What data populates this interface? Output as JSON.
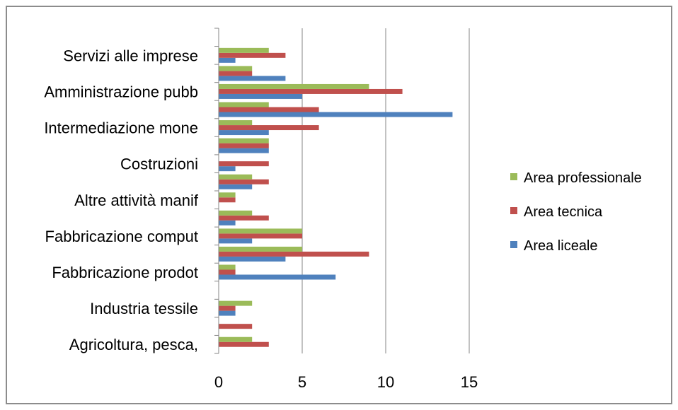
{
  "chart_data": {
    "type": "bar",
    "orientation": "horizontal",
    "title": "",
    "xlabel": "",
    "ylabel": "",
    "xlim": [
      0,
      15
    ],
    "xticks": [
      0,
      5,
      10,
      15
    ],
    "grid": "vertical",
    "legend_position": "right",
    "categories": [
      "Agricoltura, pesca,",
      "",
      "Industria tessile",
      "",
      "Fabbricazione prodot",
      "",
      "Fabbricazione comput",
      "",
      "Altre attività manif",
      "",
      "Costruzioni",
      "",
      "Intermediazione mone",
      "",
      "Amministrazione pubb",
      "",
      "Servizi alle imprese",
      ""
    ],
    "series": [
      {
        "name": "Area liceale",
        "color": "#4f81bd",
        "values": [
          0,
          0,
          1,
          0,
          7,
          4,
          2,
          1,
          0,
          2,
          1,
          3,
          3,
          14,
          5,
          4,
          1,
          0
        ]
      },
      {
        "name": "Area tecnica",
        "color": "#c0504d",
        "values": [
          3,
          2,
          1,
          0,
          1,
          9,
          5,
          3,
          1,
          3,
          3,
          3,
          6,
          6,
          11,
          2,
          4,
          0
        ]
      },
      {
        "name": "Area professionale",
        "color": "#9bbb59",
        "values": [
          2,
          0,
          2,
          0,
          1,
          5,
          5,
          2,
          1,
          2,
          0,
          3,
          2,
          3,
          9,
          2,
          3,
          0
        ]
      }
    ]
  }
}
